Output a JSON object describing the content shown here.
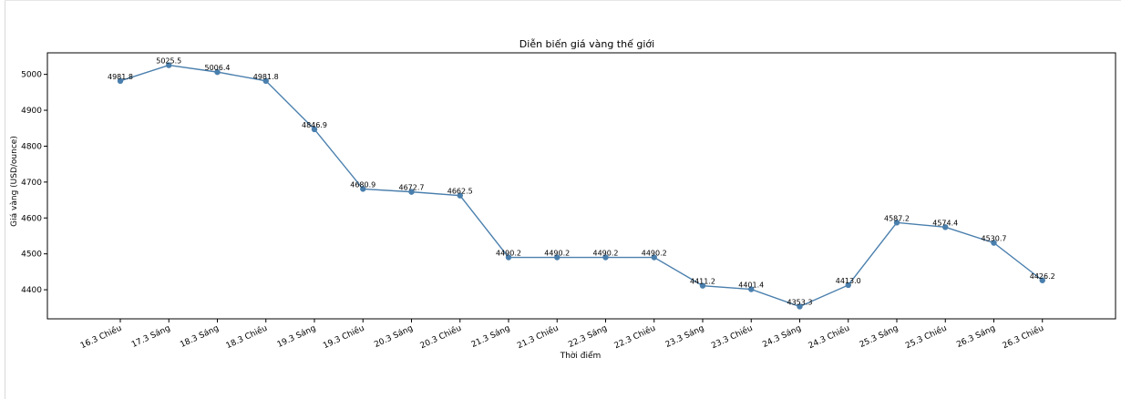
{
  "chart_data": {
    "type": "line",
    "title": "Diễn biến giá vàng thế giới",
    "xlabel": "Thời điểm",
    "ylabel": "Giá vàng (USD/ounce)",
    "categories": [
      "16.3 Chiều",
      "17.3 Sáng",
      "18.3 Sáng",
      "18.3 Chiều",
      "19.3 Sáng",
      "19.3 Chiều",
      "20.3 Sáng",
      "20.3 Chiều",
      "21.3 Sáng",
      "21.3 Chiều",
      "22.3 Sáng",
      "22.3 Chiều",
      "23.3 Sáng",
      "23.3 Chiều",
      "24.3 Sáng",
      "24.3 Chiều",
      "25.3 Sáng",
      "25.3 Chiều",
      "26.3 Sáng",
      "26.3 Chiều"
    ],
    "values": [
      4981.8,
      5025.5,
      5006.4,
      4981.8,
      4846.9,
      4680.9,
      4672.7,
      4662.5,
      4490.2,
      4490.2,
      4490.2,
      4490.2,
      4411.2,
      4401.4,
      4353.3,
      4413.0,
      4587.2,
      4574.4,
      4530.7,
      4426.2
    ],
    "data_labels": [
      "4981.8",
      "5025.5",
      "5006.4",
      "4981.8",
      "4846.9",
      "4680.9",
      "4672.7",
      "4662.5",
      "4490.2",
      "4490.2",
      "4490.2",
      "4490.2",
      "4411.2",
      "4401.4",
      "4353.3",
      "4413.0",
      "4587.2",
      "4574.4",
      "4530.7",
      "4426.2"
    ],
    "yticks": [
      4400,
      4500,
      4600,
      4700,
      4800,
      4900,
      5000
    ],
    "ylim": [
      4319,
      5060
    ],
    "grid": false,
    "marker": "circle",
    "line_color": "#4a7fad"
  }
}
